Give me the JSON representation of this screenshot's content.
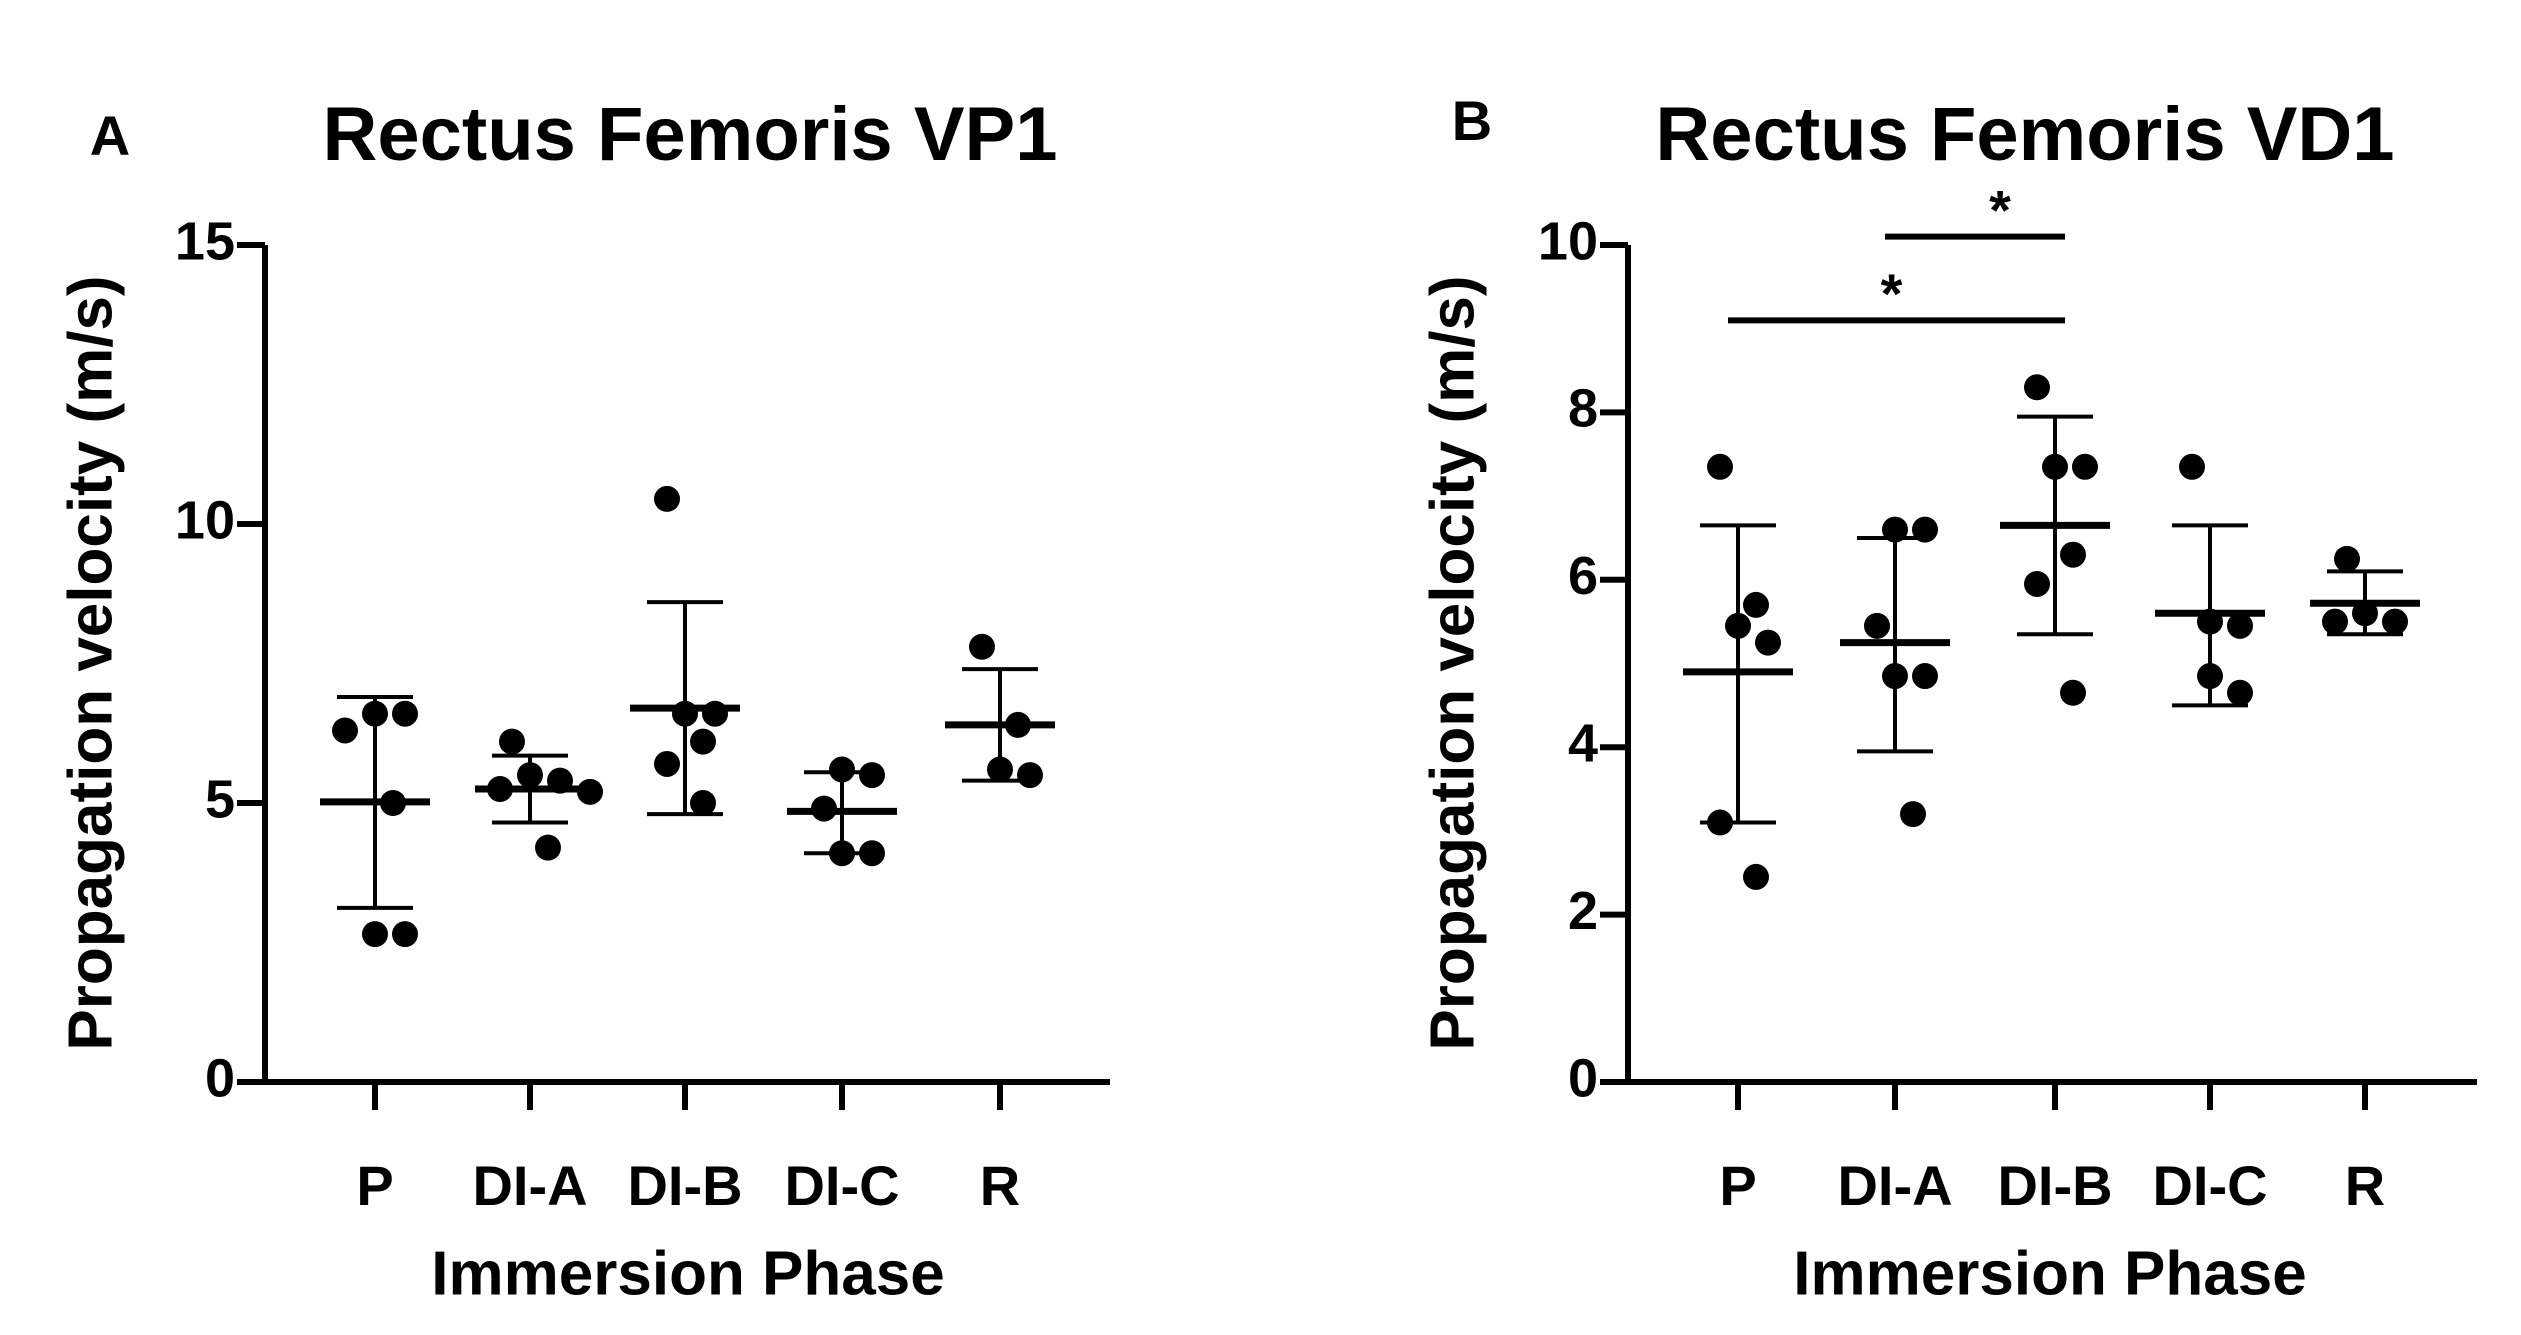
{
  "chart_data": [
    {
      "type": "scatter",
      "panel_letter": "A",
      "title": "Rectus Femoris VP1",
      "xlabel": "Immersion Phase",
      "ylabel": "Propagation velocity (m/s)",
      "ylim": [
        0,
        15
      ],
      "yticks": [
        0,
        5,
        10,
        15
      ],
      "categories": [
        "P",
        "DI-A",
        "DI-B",
        "DI-C",
        "R"
      ],
      "groups": [
        {
          "category": "P",
          "points": [
            6.6,
            6.6,
            6.3,
            5.0,
            2.65,
            2.65
          ],
          "mean": 5.02,
          "sd_low": 3.12,
          "sd_high": 6.9
        },
        {
          "category": "DI-A",
          "points": [
            6.1,
            5.5,
            5.4,
            5.25,
            5.2,
            4.2
          ],
          "mean": 5.25,
          "sd_low": 4.65,
          "sd_high": 5.85
        },
        {
          "category": "DI-B",
          "points": [
            10.45,
            6.6,
            6.6,
            6.1,
            5.7,
            5.0
          ],
          "mean": 6.7,
          "sd_low": 4.8,
          "sd_high": 8.6
        },
        {
          "category": "DI-C",
          "points": [
            5.6,
            5.5,
            4.9,
            4.1,
            4.1
          ],
          "mean": 4.85,
          "sd_low": 4.1,
          "sd_high": 5.55
        },
        {
          "category": "R",
          "points": [
            7.8,
            6.4,
            5.6,
            5.5
          ],
          "mean": 6.4,
          "sd_low": 5.4,
          "sd_high": 7.4
        }
      ],
      "significance": []
    },
    {
      "type": "scatter",
      "panel_letter": "B",
      "title": "Rectus Femoris VD1",
      "xlabel": "Immersion Phase",
      "ylabel": "Propagation velocity (m/s)",
      "ylim": [
        0,
        10
      ],
      "yticks": [
        0,
        2,
        4,
        6,
        8,
        10
      ],
      "categories": [
        "P",
        "DI-A",
        "DI-B",
        "DI-C",
        "R"
      ],
      "groups": [
        {
          "category": "P",
          "points": [
            7.35,
            5.7,
            5.45,
            5.25,
            3.1,
            2.45
          ],
          "mean": 4.9,
          "sd_low": 3.1,
          "sd_high": 6.65
        },
        {
          "category": "DI-A",
          "points": [
            6.6,
            6.6,
            5.45,
            4.85,
            4.85,
            3.2
          ],
          "mean": 5.25,
          "sd_low": 3.95,
          "sd_high": 6.5
        },
        {
          "category": "DI-B",
          "points": [
            8.3,
            7.35,
            7.35,
            6.3,
            5.95,
            4.65
          ],
          "mean": 6.65,
          "sd_low": 5.35,
          "sd_high": 7.95
        },
        {
          "category": "DI-C",
          "points": [
            7.35,
            5.5,
            5.45,
            4.85,
            4.65
          ],
          "mean": 5.6,
          "sd_low": 4.5,
          "sd_high": 6.65
        },
        {
          "category": "R",
          "points": [
            6.25,
            5.6,
            5.5,
            5.5
          ],
          "mean": 5.72,
          "sd_low": 5.35,
          "sd_high": 6.1
        }
      ],
      "significance": [
        {
          "from": "DI-A",
          "to": "DI-B",
          "y": 10.1,
          "label": "*"
        },
        {
          "from": "P",
          "to": "DI-B",
          "y": 9.1,
          "label": "*"
        }
      ]
    }
  ]
}
